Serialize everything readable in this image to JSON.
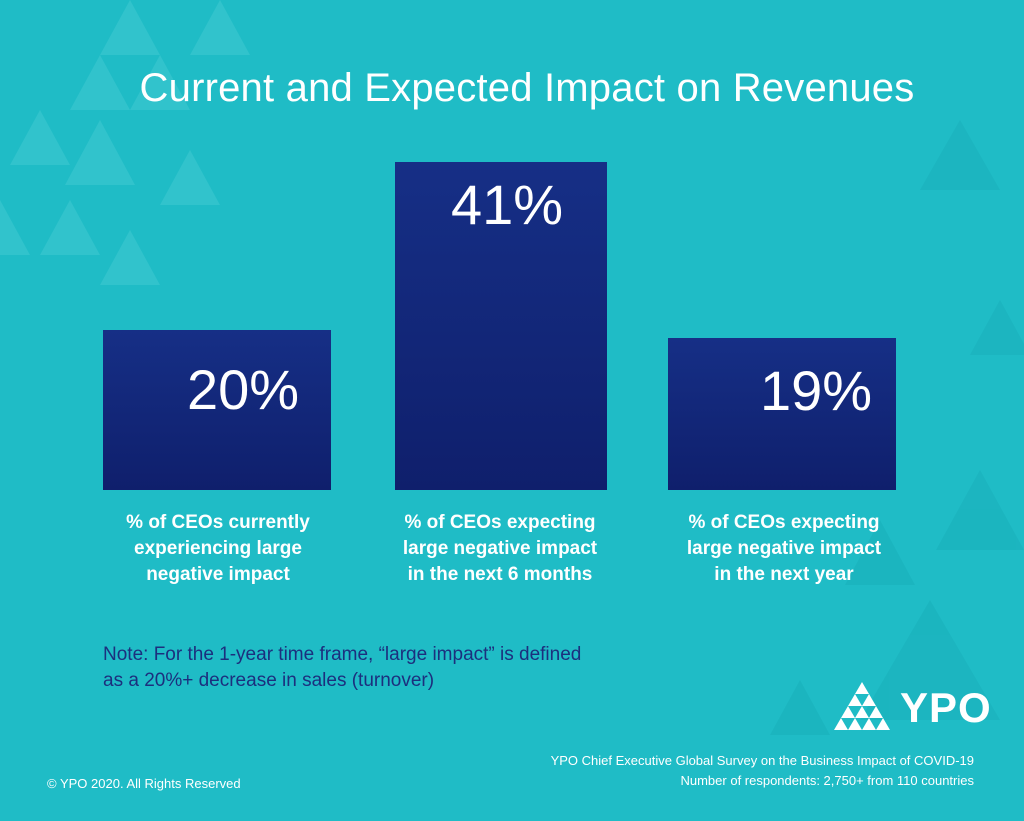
{
  "title": "Current and Expected Impact on Revenues",
  "chart_data": {
    "type": "bar",
    "categories": [
      "% of CEOs currently experiencing large negative impact",
      "% of CEOs expecting large negative impact in the next 6 months",
      "% of CEOs expecting large negative impact in the next year"
    ],
    "values": [
      20,
      41,
      19
    ],
    "value_labels": [
      "20%",
      "41%",
      "19%"
    ],
    "ylim": [
      0,
      45
    ],
    "grid": false,
    "bar_color": "#15267a"
  },
  "labels": {
    "cat0": [
      "% of CEOs currently",
      "experiencing large",
      "negative impact"
    ],
    "cat1": [
      "% of CEOs expecting",
      "large negative impact",
      "in the next 6 months"
    ],
    "cat2": [
      "% of CEOs expecting",
      "large negative impact",
      "in the next year"
    ]
  },
  "note": {
    "line1": "Note: For the 1-year time frame, “large impact” is defined",
    "line2": "as a 20%+ decrease in sales (turnover)"
  },
  "logo": {
    "text": "YPO",
    "icon": "ypo-triangle-logo-icon"
  },
  "source": {
    "line1": "YPO Chief Executive Global Survey on the Business Impact of COVID-19",
    "line2": "Number of respondents: 2,750+  from 110 countries"
  },
  "copyright": "© YPO 2020. All Rights Reserved",
  "colors": {
    "background": "#1fbcc6",
    "bar": "#15267a",
    "note_text": "#1c2f7e",
    "text": "#ffffff"
  }
}
